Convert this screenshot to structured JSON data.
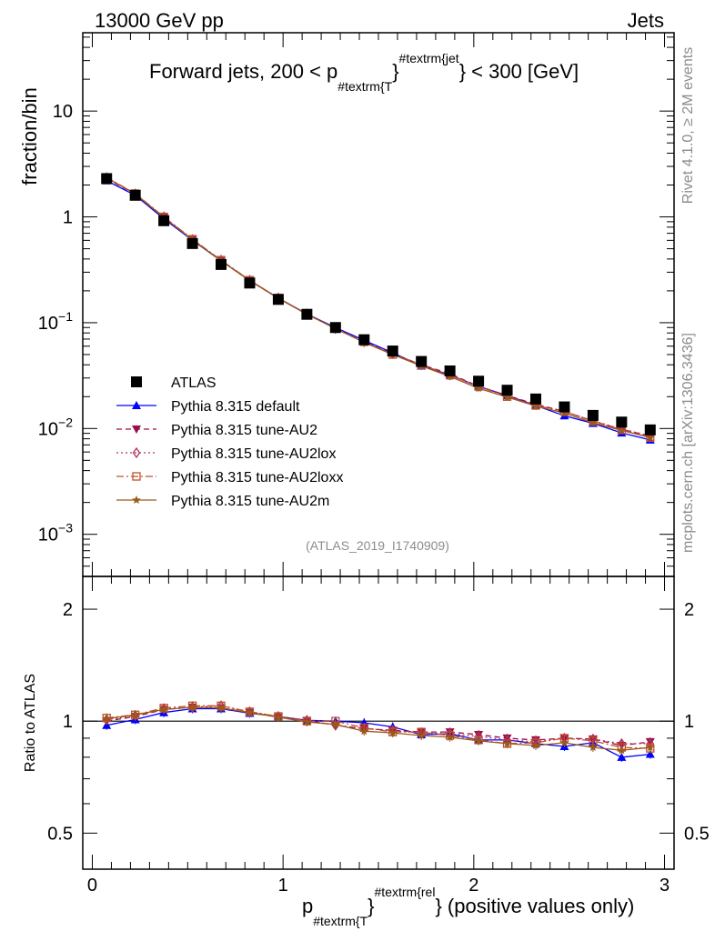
{
  "header": {
    "left": "13000 GeV pp",
    "right": "Jets"
  },
  "title": {
    "pre": "Forward jets, 200 < p",
    "sub": "#textrm{T",
    "sup": "#textrm{jet",
    "post": "} < 300 [GeV]",
    "brace": "}"
  },
  "side_labels": {
    "rivet": "Rivet 4.1.0, ≥ 2M events",
    "mcplots": "mcplots.cern.ch [arXiv:1306.3436]"
  },
  "analysis_id": "(ATLAS_2019_I1740909)",
  "xaxis_label": {
    "p": "p",
    "sub": "#textrm{T",
    "brace": "}",
    "sup": "#textrm{rel",
    "post": "} (positive values only)"
  },
  "colors": {
    "atlas": "#000000",
    "default": "#0000ff",
    "au2": "#9b0b4d",
    "au2lox": "#b0305c",
    "au2loxx": "#c0502d",
    "au2m": "#9a5a1a"
  },
  "chart_data": [
    {
      "type": "scatter",
      "panel": "main",
      "ylabel": "fraction/bin",
      "yscale": "log",
      "ylim": [
        0.0004,
        55
      ],
      "xlim": [
        -0.05,
        3.05
      ],
      "yticks": [
        {
          "v": 10,
          "label": "10"
        },
        {
          "v": 1,
          "label": "1"
        },
        {
          "v": 0.1,
          "label": "10^-1"
        },
        {
          "v": 0.01,
          "label": "10^-2"
        },
        {
          "v": 0.001,
          "label": "10^-3"
        }
      ],
      "x": [
        0.075,
        0.225,
        0.375,
        0.525,
        0.675,
        0.825,
        0.975,
        1.125,
        1.275,
        1.425,
        1.575,
        1.725,
        1.875,
        2.025,
        2.175,
        2.325,
        2.475,
        2.625,
        2.775,
        2.925
      ],
      "series": [
        {
          "name": "ATLAS",
          "key": "atlas",
          "marker": "square",
          "line": "none",
          "values": [
            2.3,
            1.6,
            0.92,
            0.56,
            0.355,
            0.237,
            0.166,
            0.12,
            0.09,
            0.069,
            0.054,
            0.043,
            0.035,
            0.028,
            0.023,
            0.019,
            0.016,
            0.0133,
            0.0115,
            0.0097
          ]
        },
        {
          "name": "Pythia 8.315 default",
          "key": "default",
          "marker": "triangle-up",
          "line": "solid",
          "values": [
            2.2,
            1.6,
            0.96,
            0.6,
            0.385,
            0.25,
            0.171,
            0.121,
            0.09,
            0.068,
            0.052,
            0.039,
            0.032,
            0.025,
            0.0205,
            0.0165,
            0.0132,
            0.0112,
            0.0091,
            0.0078
          ]
        },
        {
          "name": "Pythia 8.315 tune-AU2",
          "key": "au2",
          "marker": "triangle-down",
          "line": "dash",
          "values": [
            2.3,
            1.64,
            0.99,
            0.61,
            0.385,
            0.25,
            0.17,
            0.121,
            0.088,
            0.066,
            0.051,
            0.04,
            0.033,
            0.025,
            0.0205,
            0.017,
            0.0145,
            0.0117,
            0.0098,
            0.0085
          ]
        },
        {
          "name": "Pythia 8.315 tune-AU2lox",
          "key": "au2lox",
          "marker": "diamond",
          "line": "dot",
          "values": [
            2.35,
            1.65,
            1.0,
            0.61,
            0.39,
            0.252,
            0.171,
            0.121,
            0.088,
            0.066,
            0.051,
            0.04,
            0.032,
            0.025,
            0.0205,
            0.0168,
            0.0145,
            0.0118,
            0.0099,
            0.0085
          ]
        },
        {
          "name": "Pythia 8.315 tune-AU2loxx",
          "key": "au2loxx",
          "marker": "square-open",
          "line": "dashdot",
          "values": [
            2.36,
            1.66,
            1.0,
            0.615,
            0.39,
            0.252,
            0.171,
            0.12,
            0.088,
            0.066,
            0.05,
            0.04,
            0.032,
            0.025,
            0.02,
            0.0165,
            0.0145,
            0.0118,
            0.0097,
            0.0082
          ]
        },
        {
          "name": "Pythia 8.315 tune-AU2m",
          "key": "au2m",
          "marker": "star",
          "line": "solid",
          "values": [
            2.34,
            1.65,
            0.99,
            0.605,
            0.385,
            0.25,
            0.17,
            0.12,
            0.088,
            0.065,
            0.05,
            0.039,
            0.031,
            0.024,
            0.0198,
            0.0163,
            0.014,
            0.0113,
            0.0096,
            0.0082
          ]
        }
      ]
    },
    {
      "type": "line",
      "panel": "ratio",
      "ylabel": "Ratio to ATLAS",
      "yscale": "log",
      "ylim": [
        0.4,
        2.45
      ],
      "xlim": [
        -0.05,
        3.05
      ],
      "xlabel": "p_T^rel (positive values only)",
      "yticks": [
        {
          "v": 2,
          "label": "2"
        },
        {
          "v": 1,
          "label": "1"
        },
        {
          "v": 0.5,
          "label": "0.5"
        }
      ],
      "xticks": [
        {
          "v": 0,
          "label": "0"
        },
        {
          "v": 1,
          "label": "1"
        },
        {
          "v": 2,
          "label": "2"
        },
        {
          "v": 3,
          "label": "3"
        }
      ],
      "reference_line": 1,
      "x": [
        0.075,
        0.225,
        0.375,
        0.525,
        0.675,
        0.825,
        0.975,
        1.125,
        1.275,
        1.425,
        1.575,
        1.725,
        1.875,
        2.025,
        2.175,
        2.325,
        2.475,
        2.625,
        2.775,
        2.925
      ],
      "series": [
        {
          "name": "Pythia 8.315 default",
          "key": "default",
          "values": [
            0.975,
            1.01,
            1.055,
            1.08,
            1.08,
            1.05,
            1.03,
            1.005,
            1.0,
            0.99,
            0.965,
            0.92,
            0.925,
            0.89,
            0.89,
            0.87,
            0.855,
            0.875,
            0.8,
            0.815
          ]
        },
        {
          "name": "Pythia 8.315 tune-AU2",
          "key": "au2",
          "values": [
            1.0,
            1.03,
            1.075,
            1.09,
            1.085,
            1.055,
            1.025,
            1.005,
            0.975,
            0.955,
            0.945,
            0.935,
            0.935,
            0.92,
            0.9,
            0.89,
            0.9,
            0.895,
            0.86,
            0.88
          ]
        },
        {
          "name": "Pythia 8.315 tune-AU2lox",
          "key": "au2lox",
          "values": [
            1.01,
            1.035,
            1.08,
            1.09,
            1.1,
            1.06,
            1.03,
            1.005,
            0.975,
            0.955,
            0.945,
            0.93,
            0.925,
            0.91,
            0.89,
            0.88,
            0.9,
            0.895,
            0.87,
            0.87
          ]
        },
        {
          "name": "Pythia 8.315 tune-AU2loxx",
          "key": "au2loxx",
          "values": [
            1.02,
            1.04,
            1.085,
            1.1,
            1.1,
            1.06,
            1.03,
            1.0,
            1.0,
            0.96,
            0.935,
            0.935,
            0.915,
            0.89,
            0.87,
            0.875,
            0.9,
            0.885,
            0.85,
            0.845
          ]
        },
        {
          "name": "Pythia 8.315 tune-AU2m",
          "key": "au2m",
          "values": [
            1.015,
            1.04,
            1.075,
            1.09,
            1.085,
            1.055,
            1.025,
            0.995,
            0.98,
            0.94,
            0.93,
            0.915,
            0.905,
            0.885,
            0.87,
            0.86,
            0.875,
            0.85,
            0.835,
            0.85
          ]
        }
      ]
    }
  ]
}
